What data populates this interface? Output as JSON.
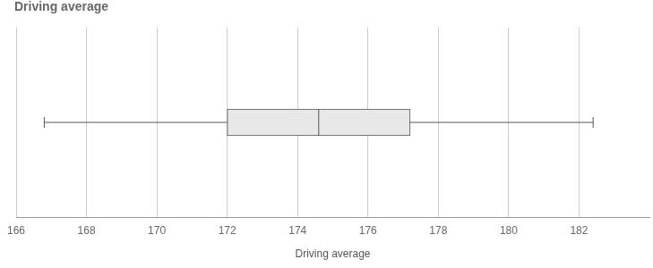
{
  "chart_data": {
    "type": "box",
    "title": "Driving average",
    "x_label": "Driving average",
    "min": 166.8,
    "q1": 172,
    "median": 174.6,
    "q3": 177.2,
    "max": 182.4,
    "color": "#e8e8e8",
    "xlim": [
      166,
      184
    ],
    "xticks": [
      166,
      168,
      170,
      172,
      174,
      176,
      178,
      180,
      182
    ],
    "grid": true,
    "tick_labels": "x"
  }
}
